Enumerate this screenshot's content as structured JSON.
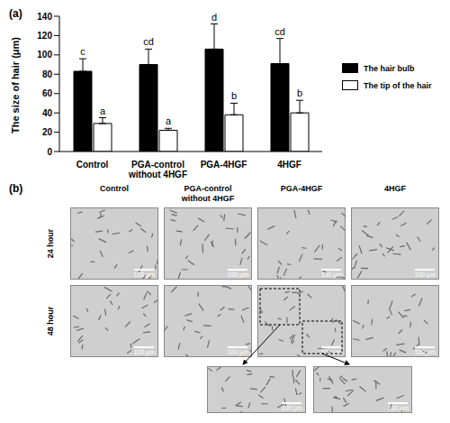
{
  "chart_data": {
    "type": "bar",
    "title": "(a)",
    "y_label": "The size of hair (μm)",
    "categories": [
      "Control",
      "PGA-control without 4HGF",
      "PGA-4HGF",
      "4HGF"
    ],
    "ylim": [
      0,
      140
    ],
    "yticks": [
      0,
      20,
      40,
      60,
      80,
      100,
      120,
      140
    ],
    "legend": "right",
    "series": [
      {
        "name": "The hair bulb",
        "color": "#000000",
        "values": [
          83,
          90,
          106,
          91
        ],
        "errors": [
          13,
          16,
          26,
          26
        ],
        "letters": [
          "c",
          "cd",
          "d",
          "cd"
        ]
      },
      {
        "name": "The tip of the hair",
        "color": "#ffffff",
        "values": [
          29,
          22,
          38,
          40
        ],
        "errors": [
          6,
          2,
          12,
          13
        ],
        "letters": [
          "a",
          "a",
          "b",
          "b"
        ]
      }
    ]
  },
  "panel_b": {
    "label": "(b)",
    "columns": [
      "Control",
      "PGA-control without 4HGF",
      "PGA-4HGF",
      "4HGF"
    ],
    "rows": [
      "24 hour",
      "48 hour"
    ],
    "scale_bar": "100 μm"
  }
}
